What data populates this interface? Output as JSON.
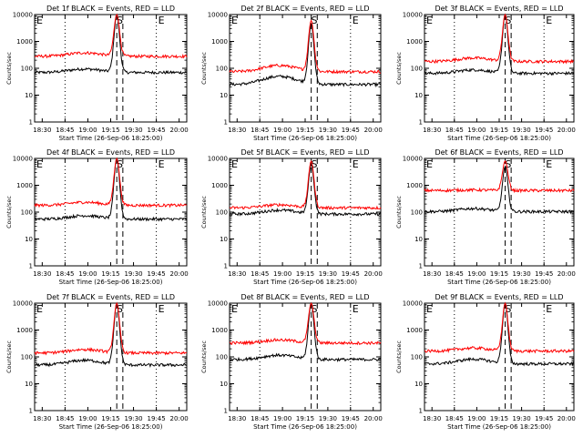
{
  "figure": {
    "ylabel": "Counts/sec",
    "xlabel": "Start Time (26-Sep-06 18:25:00)",
    "x_ticks": [
      "18:30",
      "18:45",
      "19:00",
      "19:15",
      "19:30",
      "19:45",
      "20:00"
    ],
    "y_ticks": [
      "1",
      "10",
      "100",
      "1000",
      "10000"
    ],
    "markers": {
      "left": "E",
      "mid": "S",
      "right": "E"
    },
    "colors": {
      "events": "#000000",
      "lld": "#ff0000",
      "axes": "#000000"
    }
  },
  "chart_data": [
    {
      "type": "line",
      "title": "Det 1f BLACK = Events, RED = LLD",
      "xlim": [
        "18:25",
        "20:05"
      ],
      "ylim": [
        1,
        10000
      ],
      "yscale": "log",
      "series": [
        {
          "name": "Events",
          "color": "#000000",
          "base": 70,
          "hump": 1.35,
          "peak": 10000
        },
        {
          "name": "LLD",
          "color": "#ff0000",
          "base": 280,
          "hump": 1.35,
          "peak": 10000
        }
      ]
    },
    {
      "type": "line",
      "title": "Det 2f BLACK = Events, RED = LLD",
      "xlim": [
        "18:25",
        "20:05"
      ],
      "ylim": [
        1,
        10000
      ],
      "yscale": "log",
      "series": [
        {
          "name": "Events",
          "color": "#000000",
          "base": 25,
          "hump": 2.0,
          "peak": 4500
        },
        {
          "name": "LLD",
          "color": "#ff0000",
          "base": 75,
          "hump": 1.7,
          "peak": 6000
        }
      ]
    },
    {
      "type": "line",
      "title": "Det 3f BLACK = Events, RED = LLD",
      "xlim": [
        "18:25",
        "20:05"
      ],
      "ylim": [
        1,
        10000
      ],
      "yscale": "log",
      "series": [
        {
          "name": "Events",
          "color": "#000000",
          "base": 65,
          "hump": 1.35,
          "peak": 10000
        },
        {
          "name": "LLD",
          "color": "#ff0000",
          "base": 180,
          "hump": 1.35,
          "peak": 10000
        }
      ]
    },
    {
      "type": "line",
      "title": "Det 4f BLACK = Events, RED = LLD",
      "xlim": [
        "18:25",
        "20:05"
      ],
      "ylim": [
        1,
        10000
      ],
      "yscale": "log",
      "series": [
        {
          "name": "Events",
          "color": "#000000",
          "base": 55,
          "hump": 1.35,
          "peak": 10000
        },
        {
          "name": "LLD",
          "color": "#ff0000",
          "base": 180,
          "hump": 1.3,
          "peak": 10000
        }
      ]
    },
    {
      "type": "line",
      "title": "Det 5f BLACK = Events, RED = LLD",
      "xlim": [
        "18:25",
        "20:05"
      ],
      "ylim": [
        1,
        10000
      ],
      "yscale": "log",
      "series": [
        {
          "name": "Events",
          "color": "#000000",
          "base": 85,
          "hump": 1.4,
          "peak": 6000
        },
        {
          "name": "LLD",
          "color": "#ff0000",
          "base": 145,
          "hump": 1.3,
          "peak": 8000
        }
      ]
    },
    {
      "type": "line",
      "title": "Det 6f BLACK = Events, RED = LLD",
      "xlim": [
        "18:25",
        "20:05"
      ],
      "ylim": [
        1,
        10000
      ],
      "yscale": "log",
      "series": [
        {
          "name": "Events",
          "color": "#000000",
          "base": 105,
          "hump": 1.3,
          "peak": 5000
        },
        {
          "name": "LLD",
          "color": "#ff0000",
          "base": 640,
          "hump": 1.05,
          "peak": 8000
        }
      ]
    },
    {
      "type": "line",
      "title": "Det 7f BLACK = Events, RED = LLD",
      "xlim": [
        "18:25",
        "20:05"
      ],
      "ylim": [
        1,
        10000
      ],
      "yscale": "log",
      "series": [
        {
          "name": "Events",
          "color": "#000000",
          "base": 50,
          "hump": 1.5,
          "peak": 10000
        },
        {
          "name": "LLD",
          "color": "#ff0000",
          "base": 140,
          "hump": 1.35,
          "peak": 10000
        }
      ]
    },
    {
      "type": "line",
      "title": "Det 8f BLACK = Events, RED = LLD",
      "xlim": [
        "18:25",
        "20:05"
      ],
      "ylim": [
        1,
        10000
      ],
      "yscale": "log",
      "series": [
        {
          "name": "Events",
          "color": "#000000",
          "base": 80,
          "hump": 1.45,
          "peak": 10000
        },
        {
          "name": "LLD",
          "color": "#ff0000",
          "base": 330,
          "hump": 1.3,
          "peak": 10000
        }
      ]
    },
    {
      "type": "line",
      "title": "Det 9f BLACK = Events, RED = LLD",
      "xlim": [
        "18:25",
        "20:05"
      ],
      "ylim": [
        1,
        10000
      ],
      "yscale": "log",
      "series": [
        {
          "name": "Events",
          "color": "#000000",
          "base": 55,
          "hump": 1.5,
          "peak": 10000
        },
        {
          "name": "LLD",
          "color": "#ff0000",
          "base": 165,
          "hump": 1.3,
          "peak": 10000
        }
      ]
    }
  ]
}
